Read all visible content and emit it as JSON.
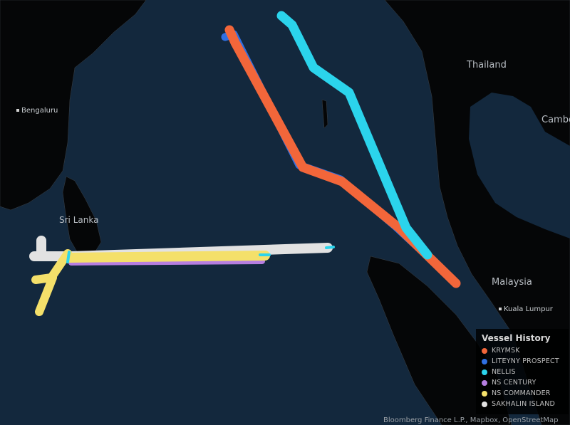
{
  "map": {
    "ocean_color": "#13283d",
    "land_color": "#050607",
    "labels": {
      "thailand": "Thailand",
      "cambodia": "Cambodia",
      "sri_lanka": "Sri Lanka",
      "malaysia": "Malaysia"
    },
    "cities": {
      "bengaluru": "Bengaluru",
      "kuala_lumpur": "Kuala Lumpur"
    },
    "credit": "Bloomberg Finance L.P., Mapbox, OpenStreetMap"
  },
  "legend": {
    "title": "Vessel History",
    "items": [
      {
        "label": "KRYMSK",
        "color": "#f2663a"
      },
      {
        "label": "LITEYNY PROSPECT",
        "color": "#2f6fe2"
      },
      {
        "label": "NELLIS",
        "color": "#2bd4ec"
      },
      {
        "label": "NS CENTURY",
        "color": "#b67ee0"
      },
      {
        "label": "NS COMMANDER",
        "color": "#f4e06a"
      },
      {
        "label": "SAKHALIN ISLAND",
        "color": "#e2e2e2"
      }
    ]
  }
}
